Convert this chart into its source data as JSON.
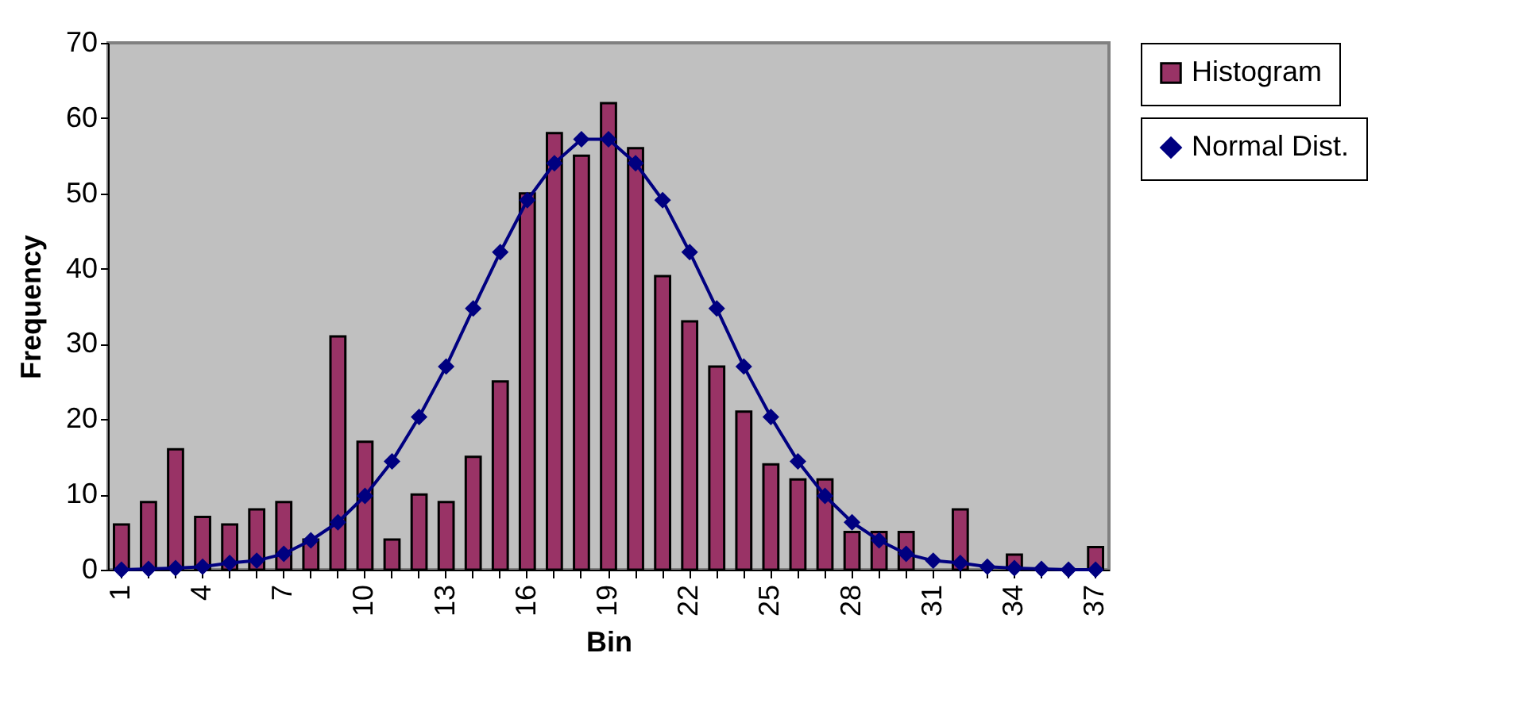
{
  "chart_data": {
    "type": "bar",
    "xlabel": "Bin",
    "ylabel": "Frequency",
    "categories": [
      "1",
      null,
      null,
      "4",
      null,
      null,
      "7",
      null,
      null,
      "10",
      null,
      null,
      "13",
      null,
      null,
      "16",
      null,
      null,
      "19",
      null,
      null,
      "22",
      null,
      null,
      "25",
      null,
      null,
      "28",
      null,
      null,
      "31",
      null,
      null,
      "34",
      null,
      null,
      "37"
    ],
    "series": [
      {
        "name": "Histogram",
        "color": "#993366",
        "values": [
          6,
          9,
          16,
          7,
          6,
          8,
          9,
          4,
          31,
          17,
          4,
          10,
          9,
          15,
          25,
          50,
          58,
          55,
          62,
          56,
          39,
          33,
          27,
          21,
          14,
          12,
          12,
          5,
          5,
          5,
          0,
          8,
          0,
          2,
          0,
          0,
          3
        ]
      },
      {
        "name": "Normal Dist.",
        "type": "line",
        "color": "#000080",
        "values": [
          0,
          0.1,
          0.2,
          0.4,
          0.9,
          1.2,
          2.1,
          3.9,
          6.3,
          9.8,
          14.4,
          20.3,
          27,
          34.7,
          42.2,
          49.1,
          54,
          57.2,
          57.2,
          54,
          49.1,
          42.2,
          34.7,
          27,
          20.3,
          14.4,
          9.8,
          6.3,
          3.9,
          2.1,
          1.2,
          0.9,
          0.4,
          0.2,
          0.1,
          0,
          0
        ]
      }
    ],
    "ylim": [
      0,
      70
    ],
    "yticks": [
      0,
      10,
      20,
      30,
      40,
      50,
      60,
      70
    ],
    "grid": false,
    "legend": "right",
    "marker": "diamond",
    "line_style": "solid"
  }
}
